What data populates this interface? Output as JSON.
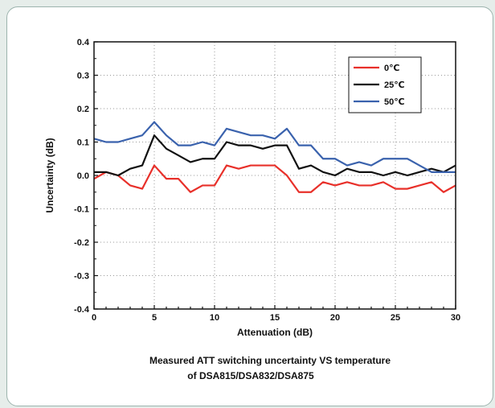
{
  "chart_data": {
    "type": "line",
    "xlabel": "Attenuation (dB)",
    "ylabel": "Uncertainty (dB)",
    "xlim": [
      0,
      30
    ],
    "ylim": [
      -0.4,
      0.4
    ],
    "x_ticks": [
      0,
      5,
      10,
      15,
      20,
      25,
      30
    ],
    "y_ticks": [
      -0.4,
      -0.3,
      -0.2,
      -0.1,
      0.0,
      0.1,
      0.2,
      0.3,
      0.4
    ],
    "grid": true,
    "legend_position": "top-right",
    "x": [
      0,
      1,
      2,
      3,
      4,
      5,
      6,
      7,
      8,
      9,
      10,
      11,
      12,
      13,
      14,
      15,
      16,
      17,
      18,
      19,
      20,
      21,
      22,
      23,
      24,
      25,
      26,
      27,
      28,
      29,
      30
    ],
    "series": [
      {
        "name": "0℃",
        "color": "#e8302a",
        "values": [
          -0.01,
          0.01,
          0.0,
          -0.03,
          -0.04,
          0.03,
          -0.01,
          -0.01,
          -0.05,
          -0.03,
          -0.03,
          0.03,
          0.02,
          0.03,
          0.03,
          0.03,
          0.0,
          -0.05,
          -0.05,
          -0.02,
          -0.03,
          -0.02,
          -0.03,
          -0.03,
          -0.02,
          -0.04,
          -0.04,
          -0.03,
          -0.02,
          -0.05,
          -0.03
        ]
      },
      {
        "name": "25℃",
        "color": "#111111",
        "values": [
          0.01,
          0.01,
          0.0,
          0.02,
          0.03,
          0.12,
          0.08,
          0.06,
          0.04,
          0.05,
          0.05,
          0.1,
          0.09,
          0.09,
          0.08,
          0.09,
          0.09,
          0.02,
          0.03,
          0.01,
          0.0,
          0.02,
          0.01,
          0.01,
          0.0,
          0.01,
          0.0,
          0.01,
          0.02,
          0.01,
          0.03
        ]
      },
      {
        "name": "50℃",
        "color": "#3a62ad",
        "values": [
          0.11,
          0.1,
          0.1,
          0.11,
          0.12,
          0.16,
          0.12,
          0.09,
          0.09,
          0.1,
          0.09,
          0.14,
          0.13,
          0.12,
          0.12,
          0.11,
          0.14,
          0.09,
          0.09,
          0.05,
          0.05,
          0.03,
          0.04,
          0.03,
          0.05,
          0.05,
          0.05,
          0.03,
          0.01,
          0.01,
          0.01
        ]
      }
    ]
  },
  "caption": {
    "line1": "Measured ATT  switching uncertainty VS temperature",
    "line2": "of DSA815/DSA832/DSA875"
  }
}
